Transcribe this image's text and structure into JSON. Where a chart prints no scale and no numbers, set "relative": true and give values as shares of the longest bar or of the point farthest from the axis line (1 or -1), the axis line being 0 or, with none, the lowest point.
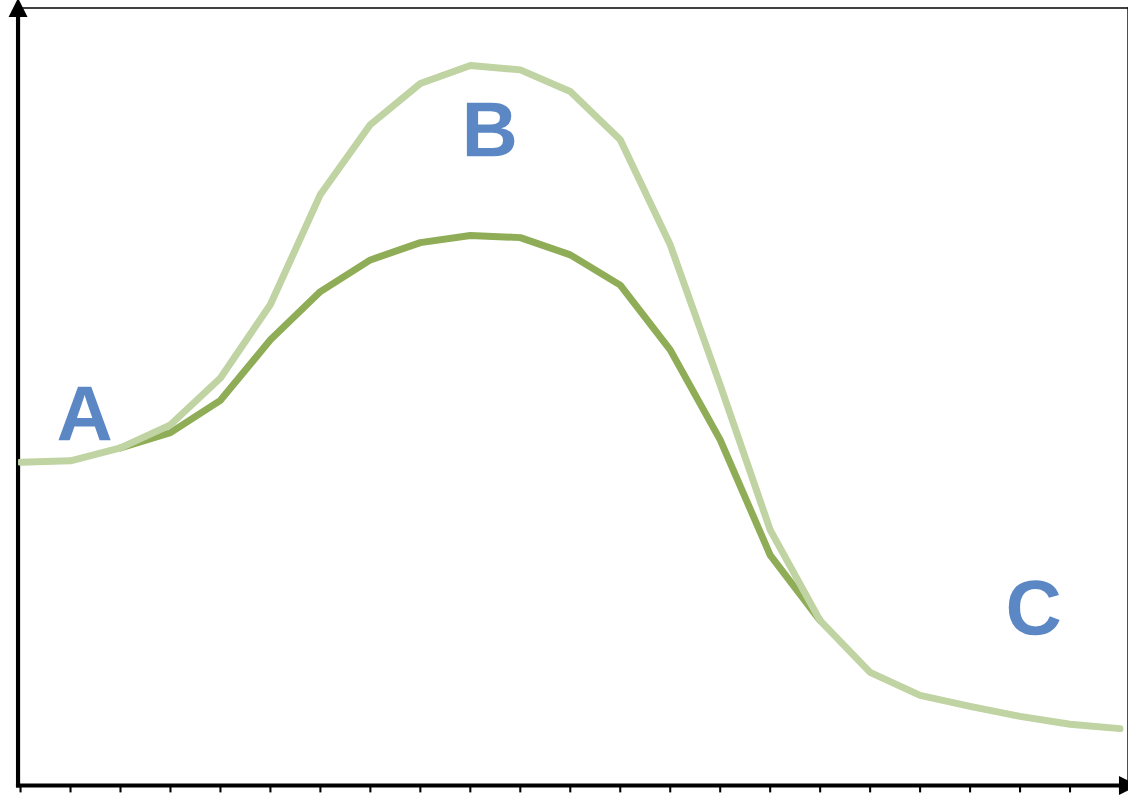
{
  "chart_data": {
    "type": "line",
    "relative": true,
    "categories": [
      null,
      null,
      null,
      null,
      null,
      null,
      null,
      null,
      null,
      null,
      null,
      null,
      null,
      null,
      null,
      null,
      null,
      null,
      null,
      null,
      null,
      null,
      null
    ],
    "series": [
      {
        "color": "#c0d3a2",
        "values": [
          0.449,
          0.451,
          0.469,
          0.501,
          0.566,
          0.668,
          0.821,
          0.918,
          0.975,
          1.0,
          0.994,
          0.964,
          0.897,
          0.751,
          0.556,
          0.355,
          0.229,
          0.157,
          0.125,
          0.11,
          0.096,
          0.085,
          0.079
        ]
      },
      {
        "color": "#8fac57",
        "values": [
          null,
          null,
          0.469,
          0.49,
          0.535,
          0.619,
          0.686,
          0.73,
          0.754,
          0.764,
          0.761,
          0.737,
          0.695,
          0.605,
          0.48,
          0.32,
          0.229,
          null,
          null,
          null,
          null,
          null,
          null
        ]
      }
    ],
    "annotations": [
      "A",
      "B",
      "C"
    ],
    "grid": false,
    "legend": false
  }
}
